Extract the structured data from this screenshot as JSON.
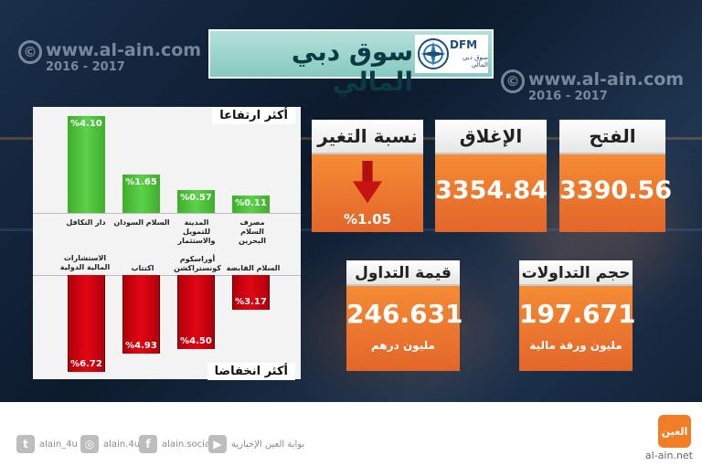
{
  "watermark": {
    "symbol": "©",
    "url": "www.al-ain.com",
    "years": "2016 - 2017"
  },
  "title": {
    "text": "سوق دبي المالي",
    "logo_abbr": "DFM",
    "logo_sub": "سوق دبي المالي"
  },
  "gainers": {
    "label": "أكثر ارتفاعا",
    "items": [
      {
        "name": "دار التكافل",
        "value_text": "%4.10",
        "value": 4.1
      },
      {
        "name": "السلام السودان",
        "value_text": "%1.65",
        "value": 1.65
      },
      {
        "name": "المدينة للتمويل والاستثمار",
        "value_text": "%0.57",
        "value": 0.57
      },
      {
        "name": "مصرف السلام البحرين",
        "value_text": "%0.11",
        "value": 0.11
      }
    ]
  },
  "losers": {
    "label": "أكثر انخفاضا",
    "items": [
      {
        "name": "الاستشارات المالية الدولية",
        "value_text": "%6.72",
        "value": 6.72
      },
      {
        "name": "اكتتاب",
        "value_text": "%4.93",
        "value": 4.93
      },
      {
        "name": "أوراسكوم كونستراكشن",
        "value_text": "%4.50",
        "value": 4.5
      },
      {
        "name": "السلام القابضة",
        "value_text": "%3.17",
        "value": 3.17
      }
    ]
  },
  "stats": {
    "open": {
      "label": "الفتح",
      "value": "3390.56"
    },
    "close": {
      "label": "الإغلاق",
      "value": "3354.84"
    },
    "change": {
      "label": "نسبة التغير",
      "value": "%1.05",
      "direction": "down"
    },
    "volume": {
      "label": "حجم التداولات",
      "value": "197.671",
      "unit": "مليون ورقة مالية"
    },
    "turnover": {
      "label": "قيمة التداول",
      "value": "246.631",
      "unit": "مليون درهم"
    }
  },
  "footer": {
    "social": [
      {
        "icon": "twitter-icon",
        "glyph": "t",
        "label": "alain_4u"
      },
      {
        "icon": "instagram-icon",
        "glyph": "◎",
        "label": "alain.4u"
      },
      {
        "icon": "facebook-icon",
        "glyph": "f",
        "label": "alain.social"
      },
      {
        "icon": "youtube-icon",
        "glyph": "▶",
        "label": "بوابة العين الإخبارية"
      }
    ],
    "brand_logo_text": "العين",
    "brand_url": "al-ain.net"
  },
  "colors": {
    "accent_orange": "#e8702c",
    "gain_green": "#4cc23a",
    "loss_red": "#e30613",
    "banner_teal": "#9fd6cf"
  }
}
